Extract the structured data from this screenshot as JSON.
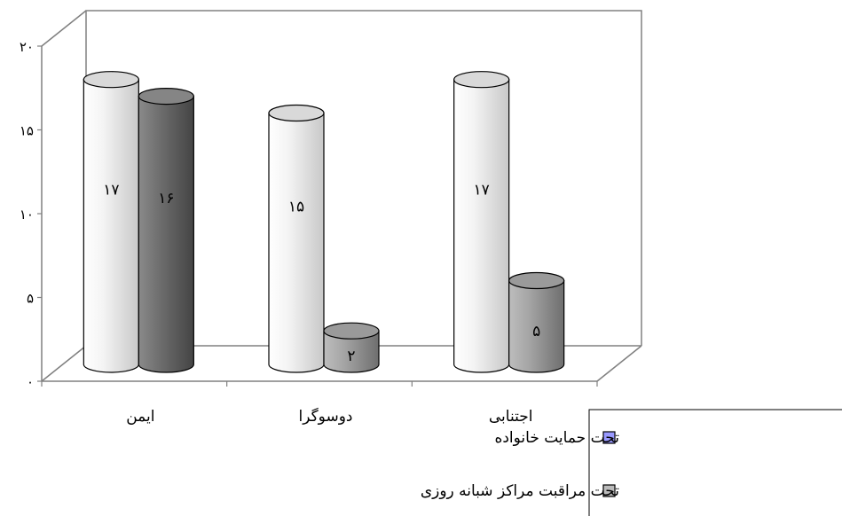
{
  "chart_data": {
    "type": "bar",
    "title": "",
    "xlabel": "",
    "ylabel": "",
    "categories": [
      "ایمن",
      "دوسوگرا",
      "اجتنابی"
    ],
    "series": [
      {
        "name": "تحت حمایت خانواده",
        "values": [
          17,
          15,
          17
        ],
        "data_labels": [
          "۱۷",
          "۱۵",
          "۱۷"
        ],
        "color": "#eeeeee"
      },
      {
        "name": "تحت مراقبت مراکز شبانه روزی",
        "values": [
          16,
          2,
          5
        ],
        "data_labels": [
          "۱۶",
          "۲",
          "۵"
        ],
        "color": "#9a9a9a"
      }
    ],
    "ylim": [
      0,
      20
    ],
    "yticks": [
      0,
      5,
      10,
      15,
      20
    ],
    "ytick_labels": [
      "۰",
      "۵",
      "۱۰",
      "۱۵",
      "۲۰"
    ],
    "grid": false,
    "legend_position": "bottom-right",
    "legend_swatch_colors": [
      "#9999ff",
      "#bbbbbb"
    ]
  }
}
